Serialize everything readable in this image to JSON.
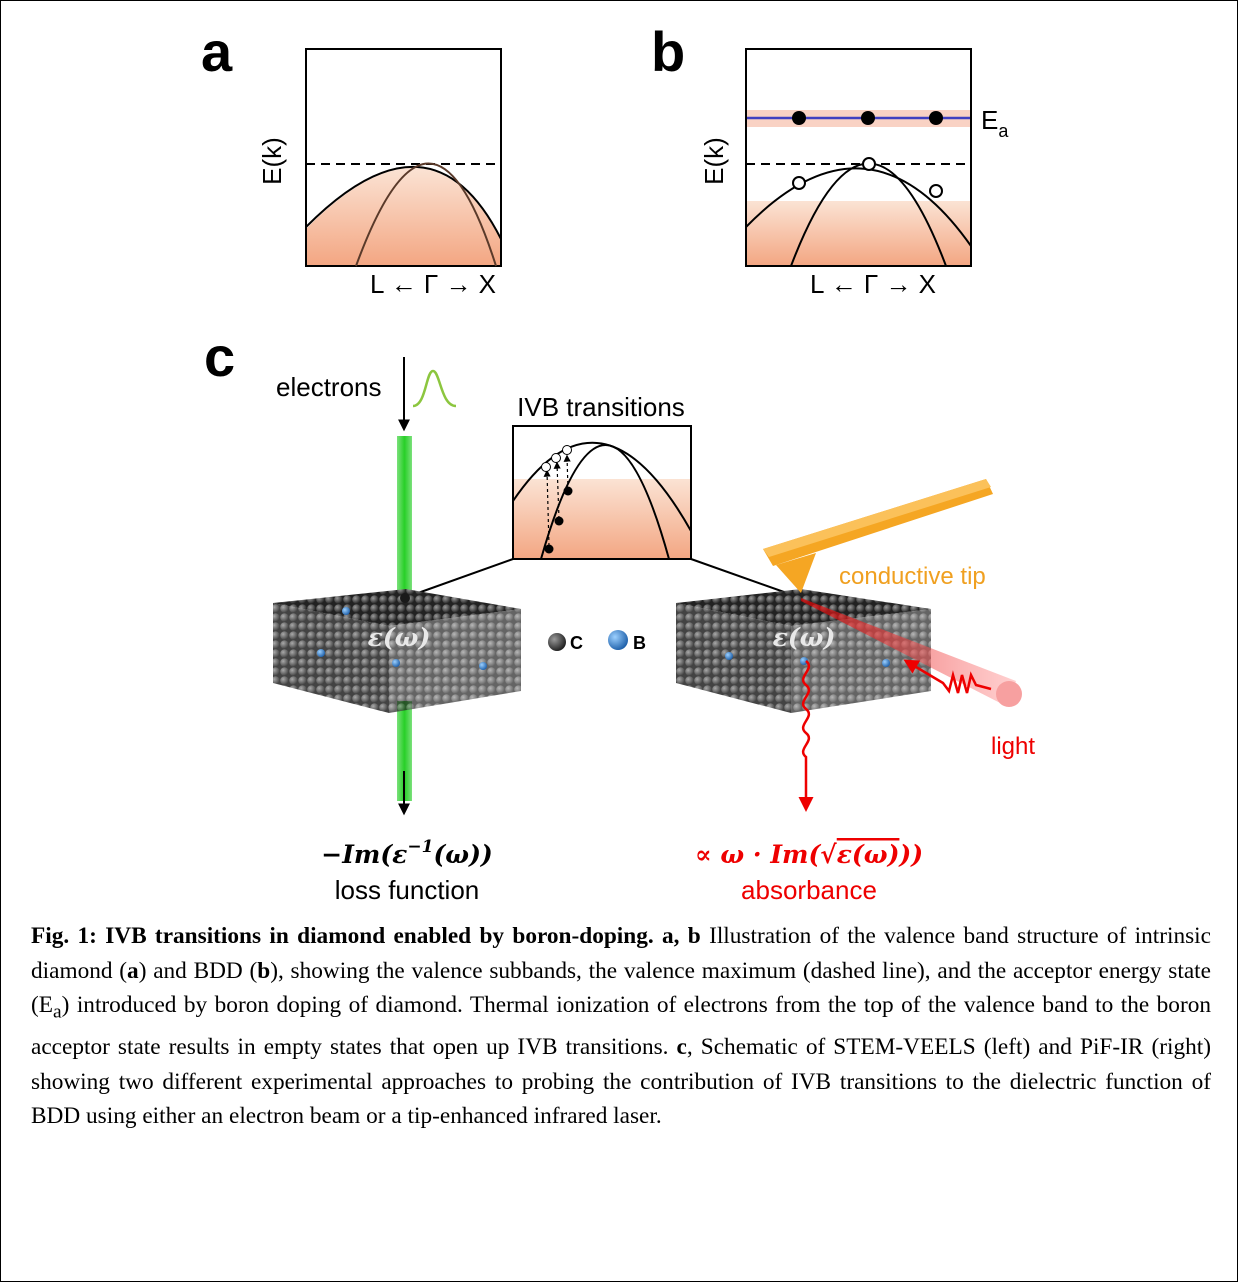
{
  "panels": {
    "a": {
      "label": "a",
      "y_axis": "E(k)",
      "x_axis": "L ← Γ → X"
    },
    "b": {
      "label": "b",
      "y_axis": "E(k)",
      "x_axis": "L ← Γ → X",
      "state": "E",
      "state_sub": "a"
    },
    "c": {
      "label": "c",
      "beam": "electrons",
      "inset_title": "IVB transitions",
      "tip": "conductive tip",
      "epsilon_left": "ε(ω)",
      "epsilon_right": "ε(ω)",
      "legend_c": "C",
      "legend_b": "B",
      "light": "light",
      "left_formula": {
        "main": "−Im(ε",
        "sup": "−1",
        "end": "(ω))"
      },
      "left_name": "loss function",
      "right_formula": {
        "main": "∝ ω · Im(",
        "root": "√",
        "radicand": "ε(ω)",
        "end": ")"
      },
      "right_name": "absorbance"
    }
  },
  "caption": [
    "Fig. 1: IVB transitions in diamond enabled by boron-doping. a, b",
    " Illustration of the valence band structure of intrinsic diamond (",
    "a",
    ") and BDD (",
    "b",
    "), showing the valence subbands, the valence maximum (dashed line), and the acceptor energy state (E",
    "a",
    ") introduced by boron doping of diamond. Thermal ionization of electrons from the top of the valence band to the boron acceptor state results in empty states that open up IVB transitions. ",
    "c",
    ", Schematic of STEM-VEELS (left) and PiF-IR (right) showing two different experimental approaches to probing the contribution of IVB transitions to the dielectric function of BDD using either an electron beam or a tip-enhanced infrared laser."
  ]
}
